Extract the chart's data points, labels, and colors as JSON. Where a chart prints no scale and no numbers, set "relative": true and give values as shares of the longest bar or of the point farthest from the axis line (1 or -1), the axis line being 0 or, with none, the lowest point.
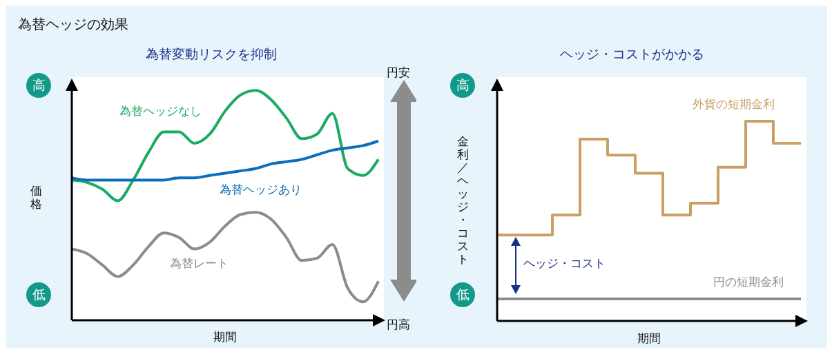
{
  "chart_data": [
    {
      "type": "line",
      "title": "為替ヘッジの効果",
      "subtitle": "為替変動リスクを抑制",
      "xlabel": "期間",
      "ylabel": "価格",
      "relative": true,
      "categories": [
        null,
        null,
        null,
        null,
        null,
        null,
        null,
        null,
        null,
        null,
        null,
        null,
        null,
        null,
        null,
        null,
        null,
        null,
        null,
        null,
        null
      ],
      "series": [
        {
          "name": "為替ヘッジなし",
          "color": "#1aaa62",
          "values": [
            0.61,
            0.6,
            0.57,
            0.52,
            0.61,
            0.73,
            0.82,
            0.82,
            0.77,
            0.81,
            0.91,
            0.98,
            1,
            0.96,
            0.88,
            0.79,
            0.81,
            0.9,
            0.66,
            0.63,
            0.7
          ]
        },
        {
          "name": "為替ヘッジあり",
          "color": "#0a6fb8",
          "values": [
            0.62,
            0.61,
            0.61,
            0.61,
            0.61,
            0.61,
            0.61,
            0.62,
            0.62,
            0.63,
            0.64,
            0.65,
            0.66,
            0.68,
            0.69,
            0.7,
            0.72,
            0.74,
            0.75,
            0.76,
            0.78
          ]
        },
        {
          "name": "為替レート",
          "color": "#8c8c8c",
          "values": [
            0.31,
            0.29,
            0.24,
            0.19,
            0.24,
            0.32,
            0.38,
            0.36,
            0.31,
            0.34,
            0.41,
            0.46,
            0.47,
            0.44,
            0.36,
            0.26,
            0.27,
            0.33,
            0.14,
            0.08,
            0.17
          ]
        }
      ],
      "annotations": [
        "高",
        "低",
        "円安",
        "円高"
      ]
    },
    {
      "type": "step",
      "title": "ヘッジ・コストがかかる",
      "xlabel": "期間",
      "ylabel": "金利／ヘッジ・コスト",
      "relative": true,
      "categories": [
        null,
        null,
        null,
        null,
        null,
        null,
        null,
        null,
        null,
        null,
        null,
        null
      ],
      "series": [
        {
          "name": "外貨の短期金利",
          "color": "#c9a064",
          "values": [
            0.43,
            0.43,
            0.53,
            0.91,
            0.83,
            0.74,
            0.53,
            0.59,
            0.77,
            1,
            0.89,
            0.89
          ]
        },
        {
          "name": "円の短期金利",
          "color": "#8c8c8c",
          "values": [
            0.11,
            0.11,
            0.11,
            0.11,
            0.11,
            0.11,
            0.11,
            0.11,
            0.11,
            0.11,
            0.11,
            0.11
          ]
        }
      ],
      "annotations": [
        "高",
        "低",
        "ヘッジ・コスト"
      ]
    }
  ]
}
